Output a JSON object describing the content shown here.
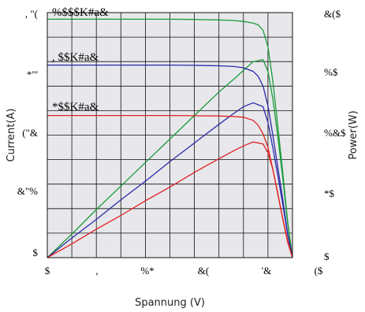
{
  "chart_data": {
    "type": "line",
    "xlabel": "Spannung (V)",
    "ylabel_left": "Current(A)",
    "ylabel_right": "Power(W)",
    "x_ticks": [
      "$",
      ",",
      "%*",
      "&(",
      "'&",
      "($"
    ],
    "y_left_ticks": [
      ", \"(",
      "*\"'",
      "(\"&",
      "&\"%",
      "$"
    ],
    "y_right_ticks": [
      "&($",
      "%$",
      "%&$",
      "*$",
      "$"
    ],
    "xlim": [
      0,
      50
    ],
    "ylim_left": [
      0,
      10
    ],
    "ylim_right": [
      0,
      250
    ],
    "grid": true,
    "background": "#e8e8ec",
    "annotations": [
      "%$$$K#a&",
      ", $$K#a&",
      "*$$K#a&"
    ],
    "current_series": [
      {
        "color": "#1a9a3a",
        "x": [
          0,
          5,
          10,
          15,
          20,
          25,
          30,
          35,
          38,
          40,
          42,
          43,
          44,
          45,
          46,
          47,
          48,
          49,
          50
        ],
        "y": [
          9.73,
          9.73,
          9.73,
          9.73,
          9.73,
          9.73,
          9.72,
          9.7,
          9.68,
          9.64,
          9.57,
          9.5,
          9.28,
          8.6,
          7.2,
          5.4,
          3.5,
          1.5,
          0
        ]
      },
      {
        "color": "#2a2aa8",
        "x": [
          0,
          5,
          10,
          15,
          20,
          25,
          30,
          35,
          38,
          40,
          42,
          43,
          44,
          45,
          46,
          47,
          48,
          49,
          50
        ],
        "y": [
          7.86,
          7.86,
          7.86,
          7.86,
          7.86,
          7.86,
          7.85,
          7.83,
          7.8,
          7.75,
          7.6,
          7.4,
          7.0,
          6.2,
          5.0,
          3.7,
          2.4,
          1.0,
          0
        ]
      },
      {
        "color": "#e02020",
        "x": [
          0,
          5,
          10,
          15,
          20,
          25,
          30,
          35,
          38,
          40,
          42,
          43,
          44,
          45,
          46,
          47,
          48,
          49,
          50
        ],
        "y": [
          5.8,
          5.8,
          5.8,
          5.8,
          5.8,
          5.8,
          5.79,
          5.78,
          5.76,
          5.73,
          5.6,
          5.4,
          5.05,
          4.5,
          3.6,
          2.6,
          1.6,
          0.7,
          0
        ]
      }
    ],
    "power_series": [
      {
        "color": "#1a9a3a",
        "x": [
          0,
          5,
          10,
          15,
          20,
          25,
          30,
          35,
          38,
          40,
          42,
          44,
          45,
          46,
          47,
          48,
          49,
          50
        ],
        "y": [
          0,
          24,
          49,
          73,
          97,
          121,
          145,
          169,
          182,
          191,
          200,
          202,
          190,
          162,
          124,
          82,
          36,
          0
        ]
      },
      {
        "color": "#2a2aa8",
        "x": [
          0,
          5,
          10,
          15,
          20,
          25,
          30,
          35,
          38,
          40,
          42,
          44,
          45,
          46,
          47,
          48,
          49,
          50
        ],
        "y": [
          0,
          20,
          39,
          59,
          78,
          98,
          117,
          136,
          147,
          154,
          158,
          154,
          138,
          112,
          84,
          55,
          24,
          0
        ]
      },
      {
        "color": "#e02020",
        "x": [
          0,
          5,
          10,
          15,
          20,
          25,
          30,
          35,
          38,
          40,
          42,
          44,
          45,
          46,
          47,
          48,
          49,
          50
        ],
        "y": [
          0,
          14,
          29,
          43,
          58,
          72,
          87,
          101,
          109,
          114,
          118,
          116,
          107,
          90,
          66,
          40,
          16,
          0
        ]
      }
    ]
  }
}
